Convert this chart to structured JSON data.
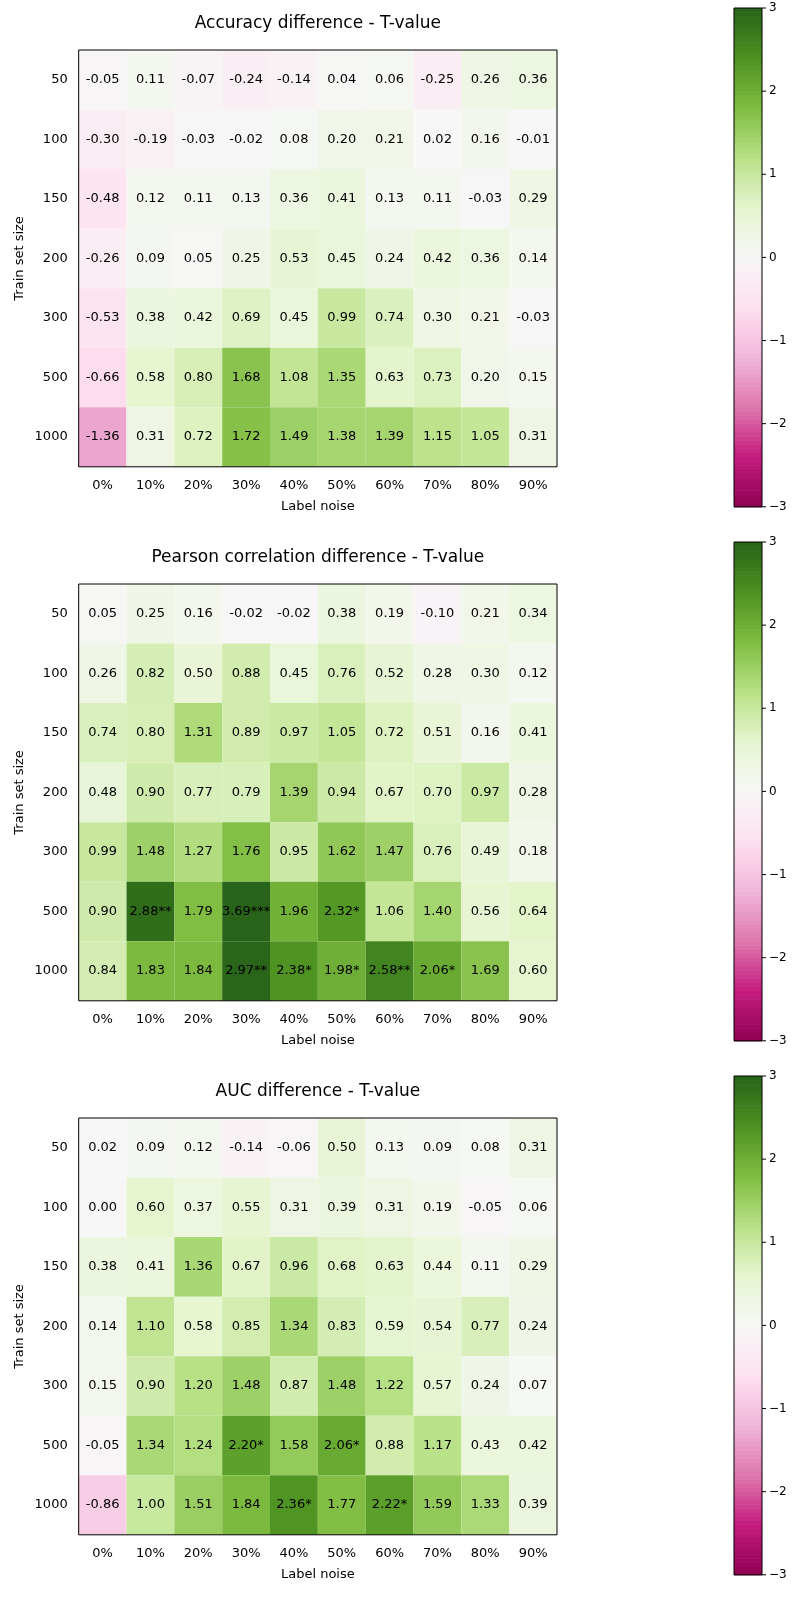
{
  "chart_data": [
    {
      "type": "heatmap",
      "title": "Accuracy difference - T-value",
      "xlabel": "Label noise",
      "ylabel": "Train set size",
      "categories": [
        "0%",
        "10%",
        "20%",
        "30%",
        "40%",
        "50%",
        "60%",
        "70%",
        "80%",
        "90%"
      ],
      "y_categories": [
        "50",
        "100",
        "150",
        "200",
        "300",
        "500",
        "1000"
      ],
      "cells": [
        [
          -0.05,
          0.11,
          -0.07,
          -0.24,
          -0.14,
          0.04,
          0.06,
          -0.25,
          0.26,
          0.36
        ],
        [
          -0.3,
          -0.19,
          -0.03,
          -0.02,
          0.08,
          0.2,
          0.21,
          0.02,
          0.16,
          -0.01
        ],
        [
          -0.48,
          0.12,
          0.11,
          0.13,
          0.36,
          0.41,
          0.13,
          0.11,
          -0.03,
          0.29
        ],
        [
          -0.26,
          0.09,
          0.05,
          0.25,
          0.53,
          0.45,
          0.24,
          0.42,
          0.36,
          0.14
        ],
        [
          -0.53,
          0.38,
          0.42,
          0.69,
          0.45,
          0.99,
          0.74,
          0.3,
          0.21,
          -0.03
        ],
        [
          -0.66,
          0.58,
          0.8,
          1.68,
          1.08,
          1.35,
          0.63,
          0.73,
          0.2,
          0.15
        ],
        [
          -1.36,
          0.31,
          0.72,
          1.72,
          1.49,
          1.38,
          1.39,
          1.15,
          1.05,
          0.31
        ]
      ],
      "cell_labels": [
        [
          "-0.05",
          "0.11",
          "-0.07",
          "-0.24",
          "-0.14",
          "0.04",
          "0.06",
          "-0.25",
          "0.26",
          "0.36"
        ],
        [
          "-0.30",
          "-0.19",
          "-0.03",
          "-0.02",
          "0.08",
          "0.20",
          "0.21",
          "0.02",
          "0.16",
          "-0.01"
        ],
        [
          "-0.48",
          "0.12",
          "0.11",
          "0.13",
          "0.36",
          "0.41",
          "0.13",
          "0.11",
          "-0.03",
          "0.29"
        ],
        [
          "-0.26",
          "0.09",
          "0.05",
          "0.25",
          "0.53",
          "0.45",
          "0.24",
          "0.42",
          "0.36",
          "0.14"
        ],
        [
          "-0.53",
          "0.38",
          "0.42",
          "0.69",
          "0.45",
          "0.99",
          "0.74",
          "0.30",
          "0.21",
          "-0.03"
        ],
        [
          "-0.66",
          "0.58",
          "0.80",
          "1.68",
          "1.08",
          "1.35",
          "0.63",
          "0.73",
          "0.20",
          "0.15"
        ],
        [
          "-1.36",
          "0.31",
          "0.72",
          "1.72",
          "1.49",
          "1.38",
          "1.39",
          "1.15",
          "1.05",
          "0.31"
        ]
      ],
      "clim": [
        -3,
        3
      ],
      "cticks": [
        {
          "value": -3,
          "label": "−3"
        },
        {
          "value": -2,
          "label": "−2"
        },
        {
          "value": -1,
          "label": "−1"
        },
        0,
        1,
        2,
        3
      ]
    },
    {
      "type": "heatmap",
      "title": "Pearson correlation difference - T-value",
      "xlabel": "Label noise",
      "ylabel": "Train set size",
      "categories": [
        "0%",
        "10%",
        "20%",
        "30%",
        "40%",
        "50%",
        "60%",
        "70%",
        "80%",
        "90%"
      ],
      "y_categories": [
        "50",
        "100",
        "150",
        "200",
        "300",
        "500",
        "1000"
      ],
      "cells": [
        [
          0.05,
          0.25,
          0.16,
          -0.02,
          -0.02,
          0.38,
          0.19,
          -0.1,
          0.21,
          0.34
        ],
        [
          0.26,
          0.82,
          0.5,
          0.88,
          0.45,
          0.76,
          0.52,
          0.28,
          0.3,
          0.12
        ],
        [
          0.74,
          0.8,
          1.31,
          0.89,
          0.97,
          1.05,
          0.72,
          0.51,
          0.16,
          0.41
        ],
        [
          0.48,
          0.9,
          0.77,
          0.79,
          1.39,
          0.94,
          0.67,
          0.7,
          0.97,
          0.28
        ],
        [
          0.99,
          1.48,
          1.27,
          1.76,
          0.95,
          1.62,
          1.47,
          0.76,
          0.49,
          0.18
        ],
        [
          0.9,
          2.88,
          1.79,
          3.69,
          1.96,
          2.32,
          1.06,
          1.4,
          0.56,
          0.64
        ],
        [
          0.84,
          1.83,
          1.84,
          2.97,
          2.38,
          1.98,
          2.58,
          2.06,
          1.69,
          0.6
        ]
      ],
      "cell_labels": [
        [
          "0.05",
          "0.25",
          "0.16",
          "-0.02",
          "-0.02",
          "0.38",
          "0.19",
          "-0.10",
          "0.21",
          "0.34"
        ],
        [
          "0.26",
          "0.82",
          "0.50",
          "0.88",
          "0.45",
          "0.76",
          "0.52",
          "0.28",
          "0.30",
          "0.12"
        ],
        [
          "0.74",
          "0.80",
          "1.31",
          "0.89",
          "0.97",
          "1.05",
          "0.72",
          "0.51",
          "0.16",
          "0.41"
        ],
        [
          "0.48",
          "0.90",
          "0.77",
          "0.79",
          "1.39",
          "0.94",
          "0.67",
          "0.70",
          "0.97",
          "0.28"
        ],
        [
          "0.99",
          "1.48",
          "1.27",
          "1.76",
          "0.95",
          "1.62",
          "1.47",
          "0.76",
          "0.49",
          "0.18"
        ],
        [
          "0.90",
          "2.88**",
          "1.79",
          "3.69***",
          "1.96",
          "2.32*",
          "1.06",
          "1.40",
          "0.56",
          "0.64"
        ],
        [
          "0.84",
          "1.83",
          "1.84",
          "2.97**",
          "2.38*",
          "1.98*",
          "2.58**",
          "2.06*",
          "1.69",
          "0.60"
        ]
      ],
      "clim": [
        -3,
        3
      ],
      "cticks": [
        {
          "value": -3,
          "label": "−3"
        },
        {
          "value": -2,
          "label": "−2"
        },
        {
          "value": -1,
          "label": "−1"
        },
        0,
        1,
        2,
        3
      ]
    },
    {
      "type": "heatmap",
      "title": "AUC difference - T-value",
      "xlabel": "Label noise",
      "ylabel": "Train set size",
      "categories": [
        "0%",
        "10%",
        "20%",
        "30%",
        "40%",
        "50%",
        "60%",
        "70%",
        "80%",
        "90%"
      ],
      "y_categories": [
        "50",
        "100",
        "150",
        "200",
        "300",
        "500",
        "1000"
      ],
      "cells": [
        [
          0.02,
          0.09,
          0.12,
          -0.14,
          -0.06,
          0.5,
          0.13,
          0.09,
          0.08,
          0.31
        ],
        [
          0.0,
          0.6,
          0.37,
          0.55,
          0.31,
          0.39,
          0.31,
          0.19,
          -0.05,
          0.06
        ],
        [
          0.38,
          0.41,
          1.36,
          0.67,
          0.96,
          0.68,
          0.63,
          0.44,
          0.11,
          0.29
        ],
        [
          0.14,
          1.1,
          0.58,
          0.85,
          1.34,
          0.83,
          0.59,
          0.54,
          0.77,
          0.24
        ],
        [
          0.15,
          0.9,
          1.2,
          1.48,
          0.87,
          1.48,
          1.22,
          0.57,
          0.24,
          0.07
        ],
        [
          -0.05,
          1.34,
          1.24,
          2.2,
          1.58,
          2.06,
          0.88,
          1.17,
          0.43,
          0.42
        ],
        [
          -0.86,
          1.0,
          1.51,
          1.84,
          2.36,
          1.77,
          2.22,
          1.59,
          1.33,
          0.39
        ]
      ],
      "cell_labels": [
        [
          "0.02",
          "0.09",
          "0.12",
          "-0.14",
          "-0.06",
          "0.50",
          "0.13",
          "0.09",
          "0.08",
          "0.31"
        ],
        [
          "0.00",
          "0.60",
          "0.37",
          "0.55",
          "0.31",
          "0.39",
          "0.31",
          "0.19",
          "-0.05",
          "0.06"
        ],
        [
          "0.38",
          "0.41",
          "1.36",
          "0.67",
          "0.96",
          "0.68",
          "0.63",
          "0.44",
          "0.11",
          "0.29"
        ],
        [
          "0.14",
          "1.10",
          "0.58",
          "0.85",
          "1.34",
          "0.83",
          "0.59",
          "0.54",
          "0.77",
          "0.24"
        ],
        [
          "0.15",
          "0.90",
          "1.20",
          "1.48",
          "0.87",
          "1.48",
          "1.22",
          "0.57",
          "0.24",
          "0.07"
        ],
        [
          "-0.05",
          "1.34",
          "1.24",
          "2.20*",
          "1.58",
          "2.06*",
          "0.88",
          "1.17",
          "0.43",
          "0.42"
        ],
        [
          "-0.86",
          "1.00",
          "1.51",
          "1.84",
          "2.36*",
          "1.77",
          "2.22*",
          "1.59",
          "1.33",
          "0.39"
        ]
      ],
      "clim": [
        -3,
        3
      ],
      "cticks": [
        {
          "value": -3,
          "label": "−3"
        },
        {
          "value": -2,
          "label": "−2"
        },
        {
          "value": -1,
          "label": "−1"
        },
        0,
        1,
        2,
        3
      ]
    }
  ]
}
